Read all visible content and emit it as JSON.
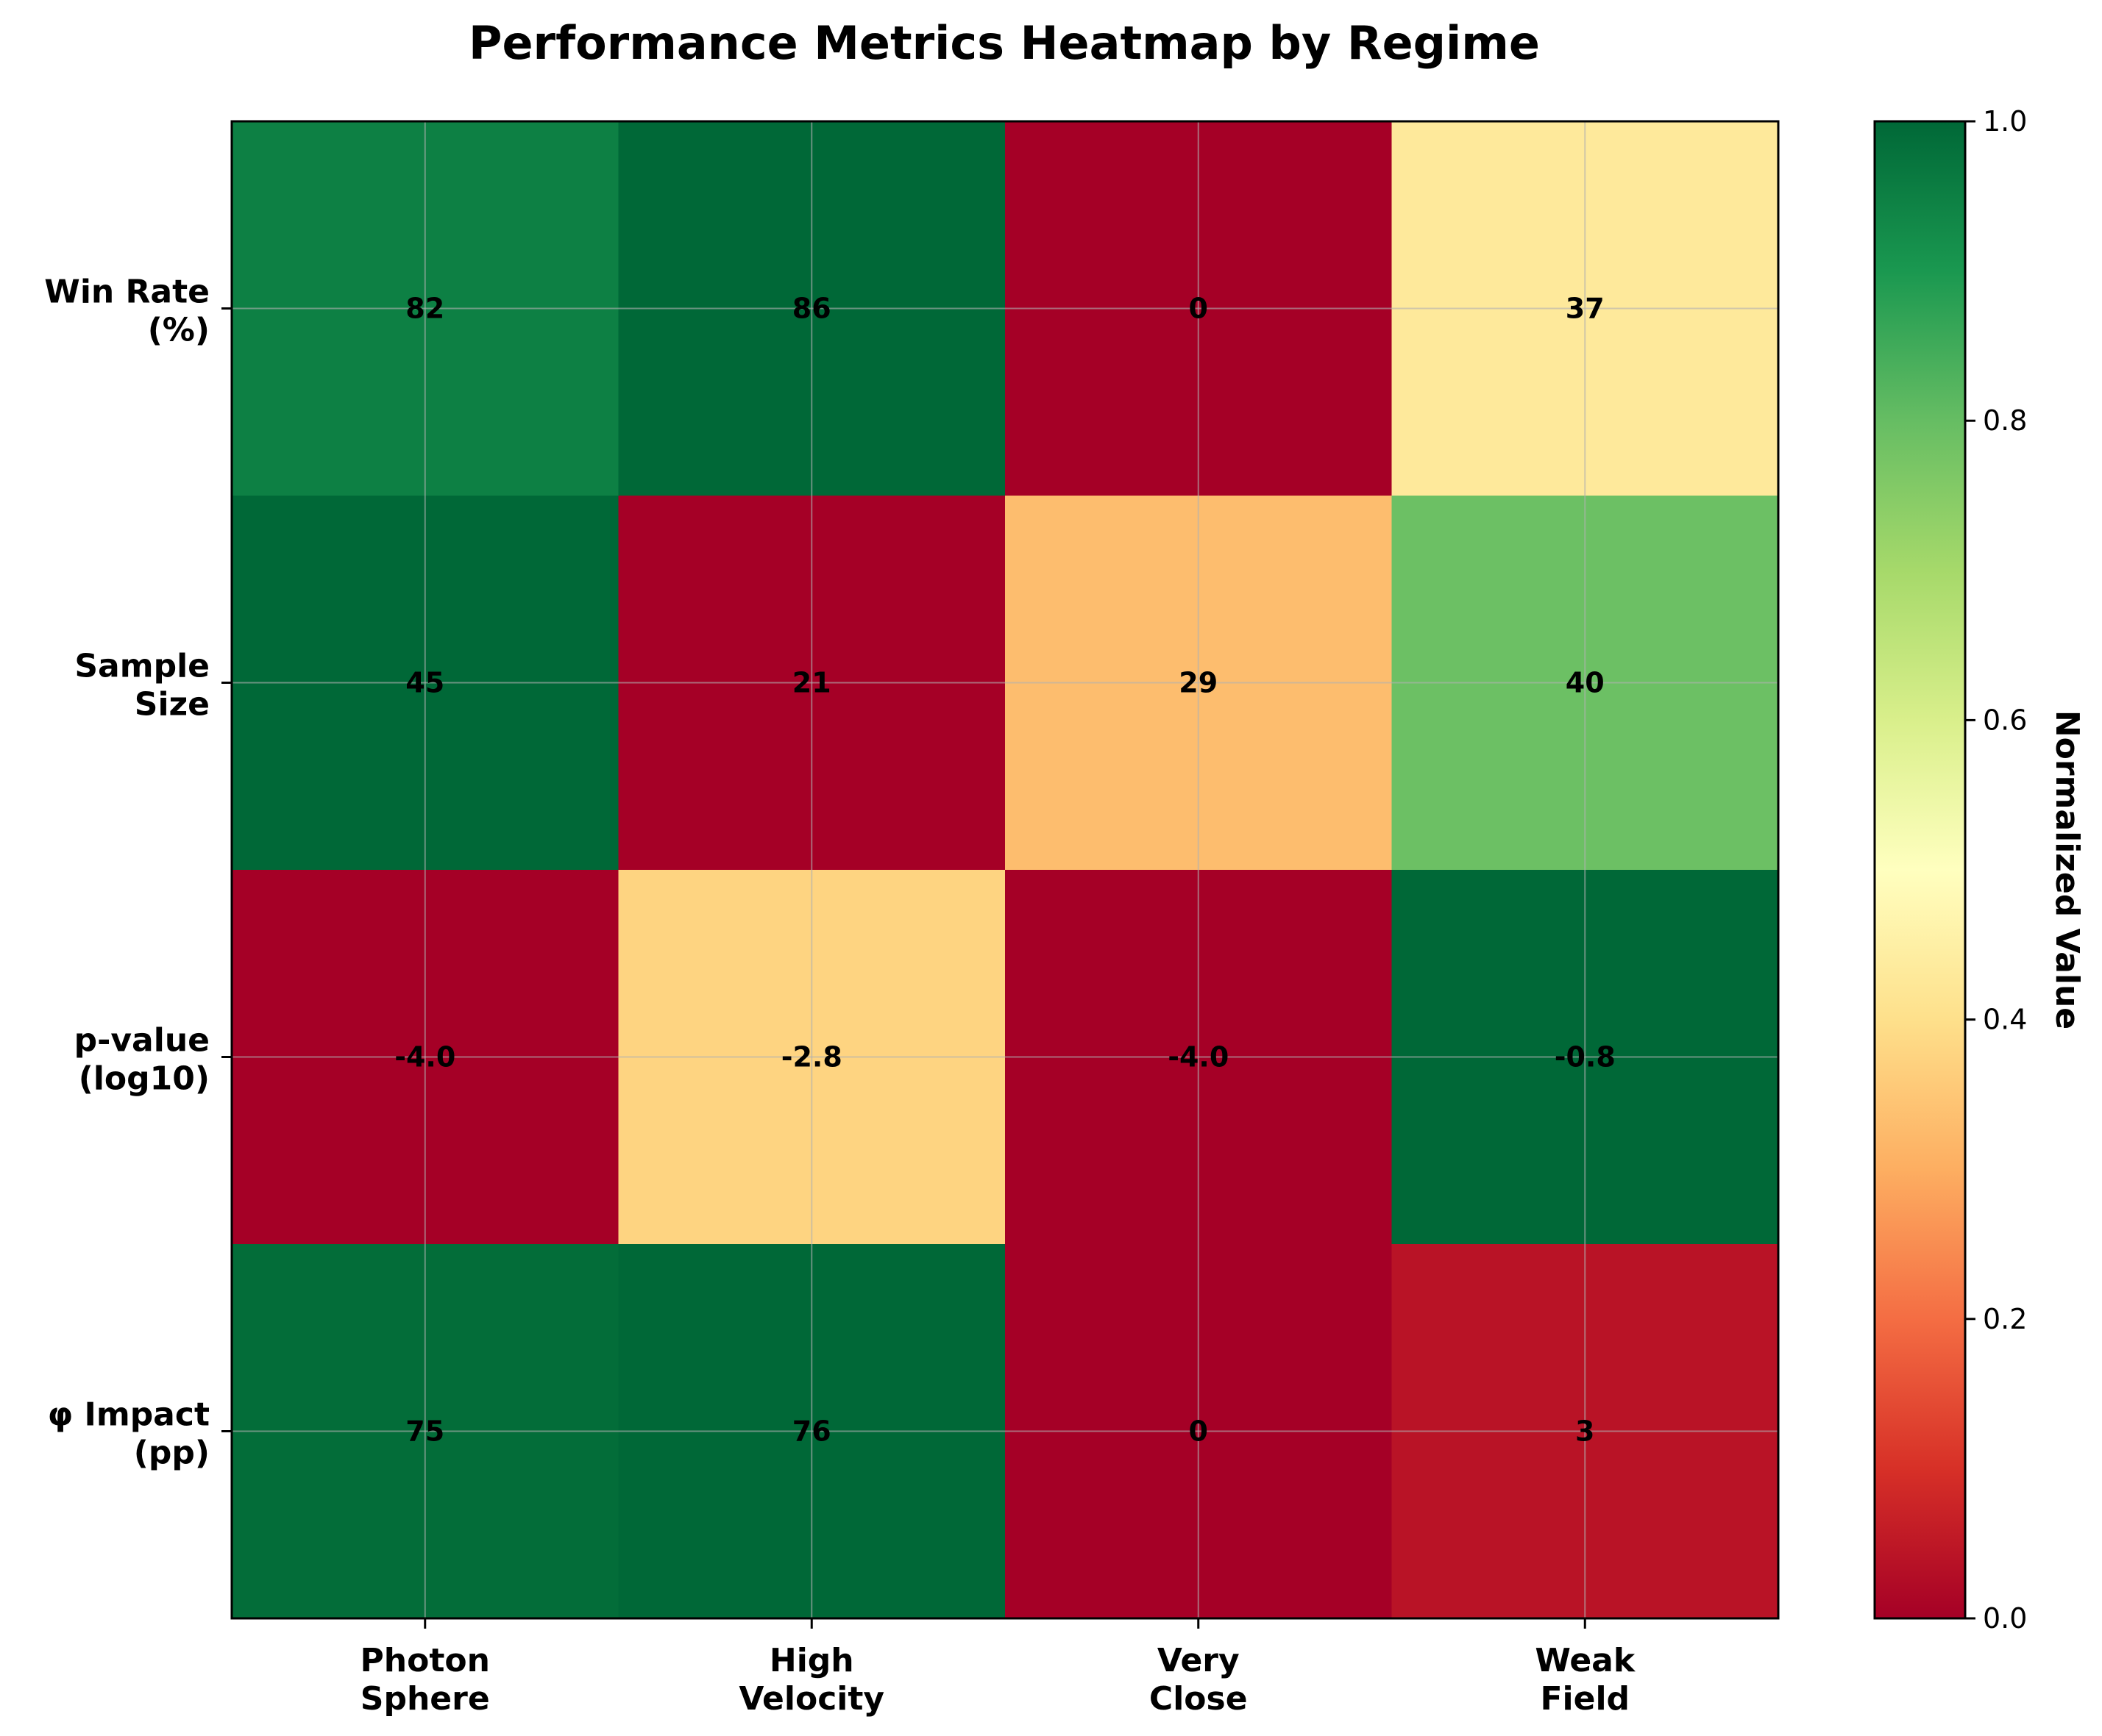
{
  "chart_data": {
    "type": "heatmap",
    "title": "Performance Metrics Heatmap by Regime",
    "x_categories": [
      [
        "Photon",
        "Sphere"
      ],
      [
        "High",
        "Velocity"
      ],
      [
        "Very",
        "Close"
      ],
      [
        "Weak",
        "Field"
      ]
    ],
    "y_categories": [
      [
        "Win Rate",
        "(%)"
      ],
      [
        "Sample",
        "Size"
      ],
      [
        "p-value",
        "(log10)"
      ],
      [
        "φ Impact",
        "(pp)"
      ]
    ],
    "cell_labels": [
      [
        "82",
        "86",
        "0",
        "37"
      ],
      [
        "45",
        "21",
        "29",
        "40"
      ],
      [
        "-4.0",
        "-2.8",
        "-4.0",
        "-0.8"
      ],
      [
        "75",
        "76",
        "0",
        "3"
      ]
    ],
    "normalized_values": [
      [
        0.95,
        1.0,
        0.0,
        0.43
      ],
      [
        1.0,
        0.0,
        0.33,
        0.79
      ],
      [
        0.0,
        0.375,
        0.0,
        1.0
      ],
      [
        0.99,
        1.0,
        0.0,
        0.04
      ]
    ],
    "colormap": "RdYlGn",
    "colorbar": {
      "label": "Normalized Value",
      "range": [
        0.0,
        1.0
      ],
      "ticks": [
        "0.0",
        "0.2",
        "0.4",
        "0.6",
        "0.8",
        "1.0"
      ]
    },
    "grid": true
  }
}
